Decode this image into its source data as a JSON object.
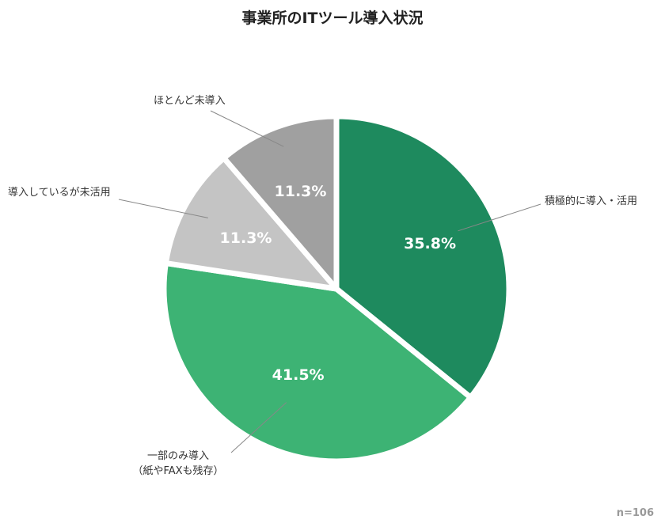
{
  "chart_data": {
    "type": "pie",
    "title": "事業所のITツール導入状況",
    "categories": [
      "積極的に導入・活用",
      "一部のみ導入\n（紙やFAXも残存）",
      "導入しているが未活用",
      "ほとんど未導入"
    ],
    "values": [
      35.8,
      41.5,
      11.3,
      11.3
    ],
    "value_labels": [
      "35.8%",
      "41.5%",
      "11.3%",
      "11.3%"
    ],
    "colors": [
      "#1e8a5e",
      "#3db374",
      "#c4c4c4",
      "#a0a0a0"
    ],
    "note": "n=106"
  }
}
